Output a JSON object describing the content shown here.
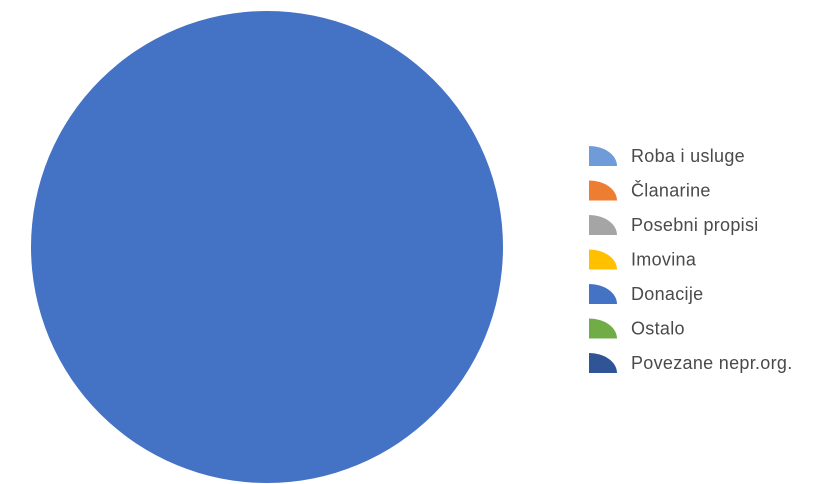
{
  "chart_data": {
    "type": "pie",
    "title": "",
    "legend_position": "right",
    "series": [
      {
        "name": "Roba i usluge",
        "value": 0,
        "color": "#6f9bd8"
      },
      {
        "name": "Članarine",
        "value": 0,
        "color": "#ed7d31"
      },
      {
        "name": "Posebni propisi",
        "value": 0,
        "color": "#a5a5a5"
      },
      {
        "name": "Imovina",
        "value": 0,
        "color": "#ffc000"
      },
      {
        "name": "Donacije",
        "value": 100,
        "color": "#4472c4"
      },
      {
        "name": "Ostalo",
        "value": 0,
        "color": "#70ad47"
      },
      {
        "name": "Povezane nepr.org.",
        "value": 0,
        "color": "#2f5597"
      }
    ]
  }
}
